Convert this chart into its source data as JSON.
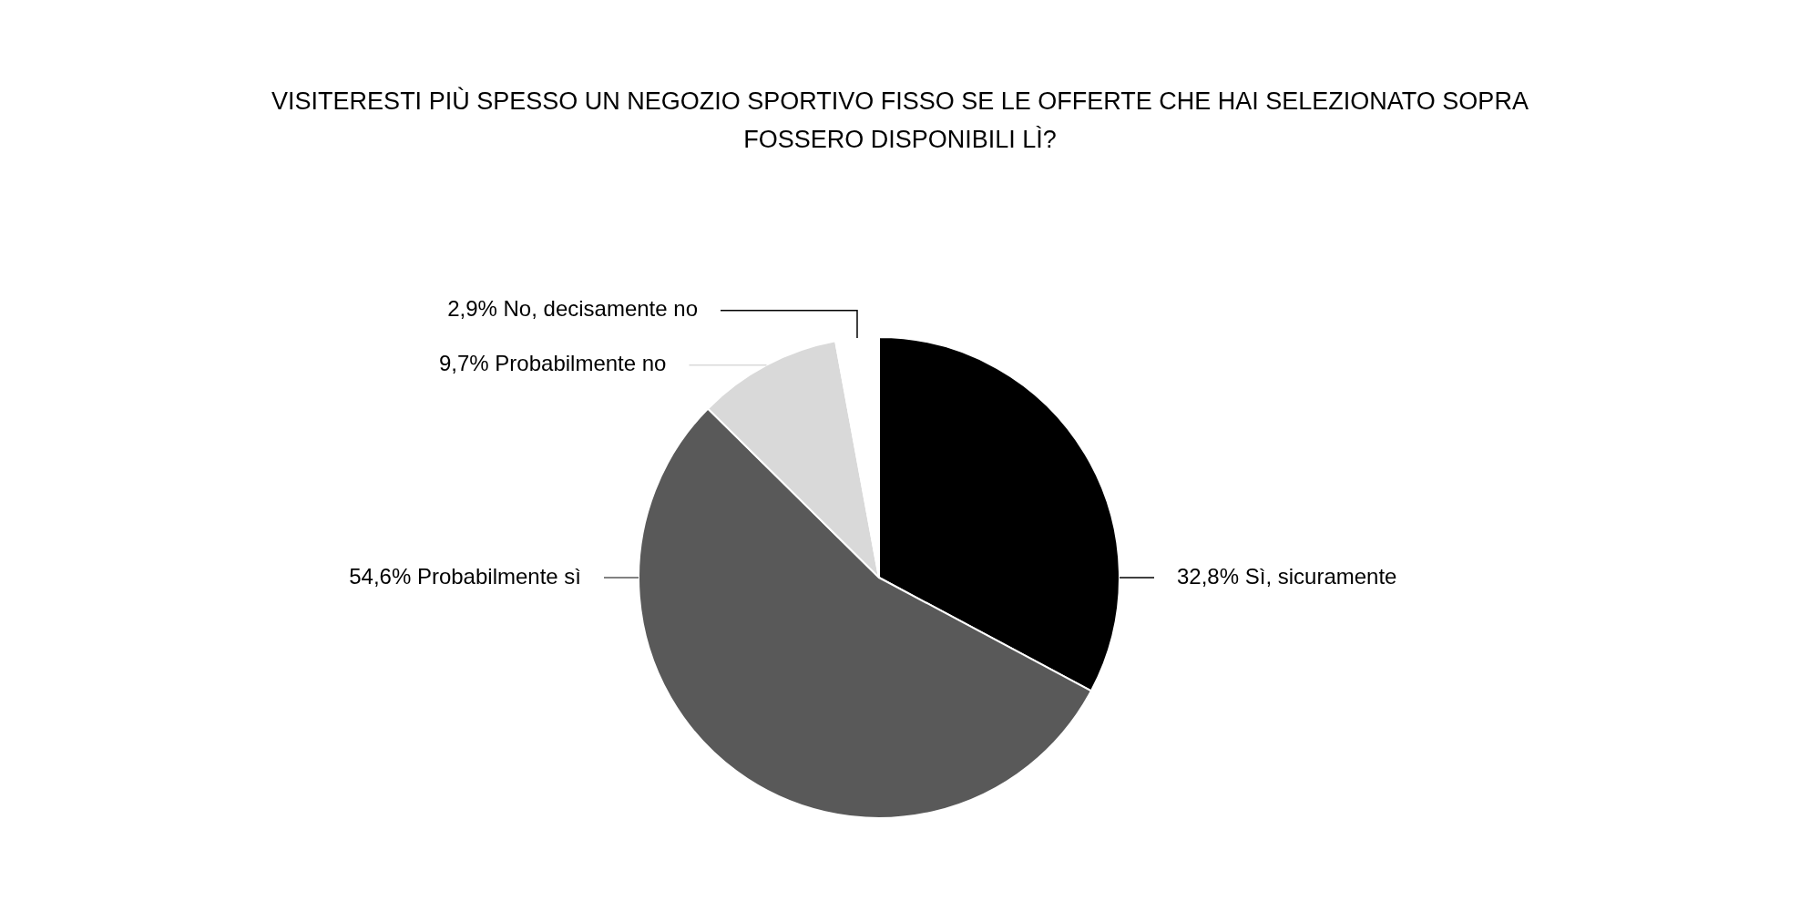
{
  "chart_data": {
    "type": "pie",
    "title": "VISITERESTI PIÙ SPESSO UN NEGOZIO SPORTIVO FISSO SE LE OFFERTE CHE HAI SELEZIONATO SOPRA FOSSERO DISPONIBILI LÌ?",
    "categories": [
      "Sì, sicuramente",
      "Probabilmente sì",
      "Probabilmente no",
      "No, decisamente no"
    ],
    "values": [
      32.8,
      54.6,
      9.7,
      2.9
    ],
    "value_labels": [
      "32,8%",
      "54,6%",
      "9,7%",
      "2,9%"
    ],
    "colors": [
      "#000000",
      "#595959",
      "#d9d9d9",
      "#ffffff"
    ],
    "legend": false
  }
}
